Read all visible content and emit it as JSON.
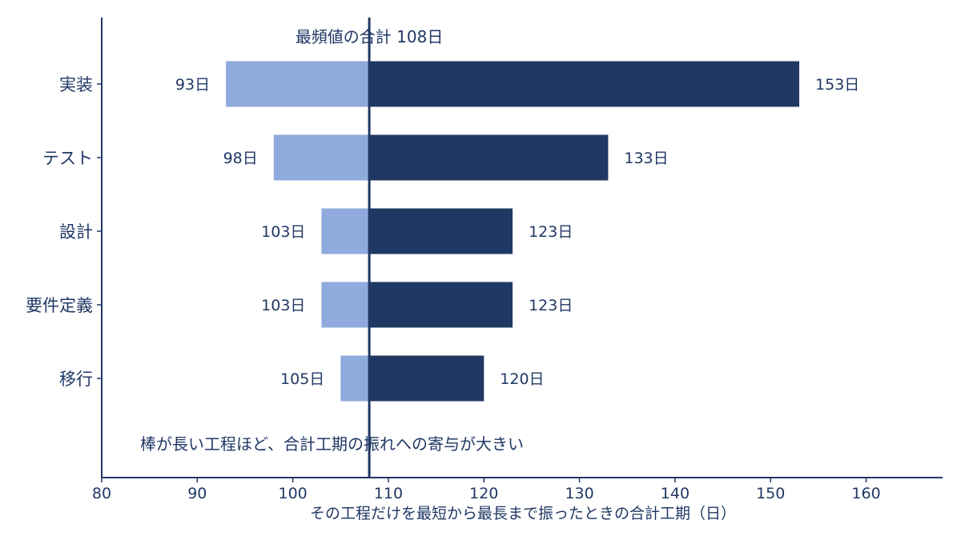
{
  "chart_data": {
    "type": "bar",
    "orientation": "horizontal",
    "subtype": "tornado",
    "categories": [
      "実装",
      "テスト",
      "設計",
      "要件定義",
      "移行"
    ],
    "series": [
      {
        "role": "shortest",
        "values": [
          93,
          98,
          103,
          103,
          105
        ]
      },
      {
        "role": "longest",
        "values": [
          153,
          133,
          123,
          123,
          120
        ]
      }
    ],
    "low_labels": [
      "93日",
      "98日",
      "103日",
      "103日",
      "105日"
    ],
    "high_labels": [
      "153日",
      "133日",
      "123日",
      "123日",
      "120日"
    ],
    "baseline": {
      "value": 108,
      "label": "最頻値の合計 108日"
    },
    "note": "棒が長い工程ほど、合計工期の振れへの寄与が大きい",
    "xlabel": "その工程だけを最短から最長まで振ったときの合計工期（日）",
    "ylabel": "",
    "xlim": [
      80,
      168
    ],
    "xticks": [
      80,
      90,
      100,
      110,
      120,
      130,
      140,
      150,
      160
    ],
    "grid": false,
    "colors": {
      "shortest": "#8faadc",
      "longest": "#203864",
      "text": "#203864"
    }
  }
}
